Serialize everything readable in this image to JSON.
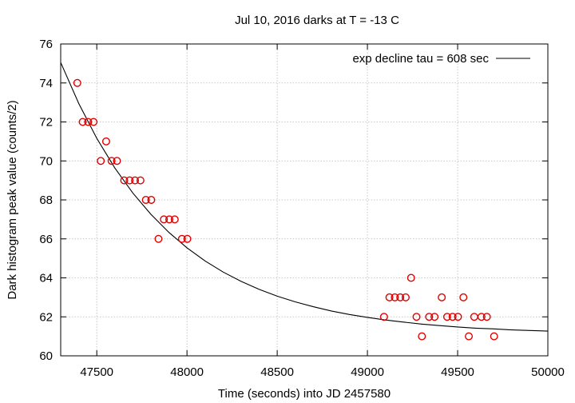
{
  "chart_data": {
    "type": "scatter",
    "title": "Jul 10, 2016 darks at T = -13 C",
    "xlabel": "Time (seconds) into JD 2457580",
    "ylabel": "Dark histogram peak value (counts/2)",
    "xlim": [
      47300,
      50000
    ],
    "ylim": [
      60,
      76
    ],
    "xticks": [
      47500,
      48000,
      48500,
      49000,
      49500,
      50000
    ],
    "yticks": [
      60,
      62,
      64,
      66,
      68,
      70,
      72,
      74,
      76
    ],
    "xtick_labels": [
      "47500",
      "48000",
      "48500",
      "49000",
      "49500",
      "50000"
    ],
    "ytick_labels": [
      "60",
      "62",
      "64",
      "66",
      "68",
      "70",
      "72",
      "74",
      "76"
    ],
    "grid": true,
    "legend_position": "top-right",
    "series": [
      {
        "kind": "points",
        "color": "#e00000",
        "x": [
          47392,
          47422,
          47452,
          47482,
          47522,
          47552,
          47582,
          47612,
          47652,
          47682,
          47712,
          47742,
          47772,
          47802,
          47842,
          47872,
          47902,
          47932,
          47972,
          48002,
          49092,
          49122,
          49152,
          49182,
          49212,
          49242,
          49272,
          49302,
          49342,
          49372,
          49412,
          49442,
          49472,
          49502,
          49532,
          49562,
          49592,
          49632,
          49662,
          49702
        ],
        "y": [
          74,
          72,
          72,
          72,
          70,
          71,
          70,
          70,
          69,
          69,
          69,
          69,
          68,
          68,
          66,
          67,
          67,
          67,
          66,
          66,
          62,
          63,
          63,
          63,
          63,
          64,
          62,
          61,
          62,
          62,
          63,
          62,
          62,
          62,
          63,
          61,
          62,
          62,
          62,
          61
        ]
      },
      {
        "name": "exp decline tau = 608 sec",
        "kind": "curve",
        "color": "#000000",
        "x": [
          47300,
          47400,
          47500,
          47600,
          47700,
          47800,
          47900,
          48000,
          48100,
          48200,
          48300,
          48400,
          48500,
          48600,
          48700,
          48800,
          48900,
          49000,
          49100,
          49200,
          49300,
          49400,
          49500,
          49600,
          49700,
          49800,
          49900,
          50000
        ],
        "y": [
          75.05,
          72.95,
          71.16,
          69.64,
          68.35,
          67.26,
          66.33,
          65.54,
          64.87,
          64.3,
          63.82,
          63.41,
          63.06,
          62.77,
          62.52,
          62.3,
          62.12,
          61.97,
          61.84,
          61.73,
          61.63,
          61.55,
          61.48,
          61.42,
          61.38,
          61.33,
          61.3,
          61.27
        ]
      }
    ]
  }
}
